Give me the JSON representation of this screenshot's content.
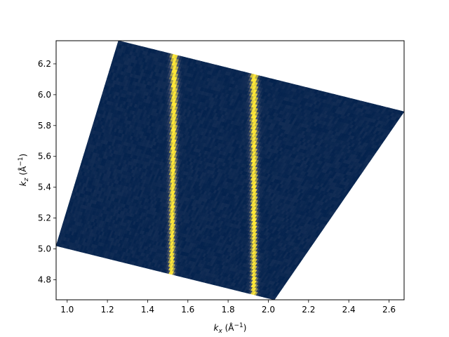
{
  "chart_data": {
    "type": "heatmap",
    "title": "",
    "xlabel": {
      "base": "k",
      "sub": "x",
      "unit": " (Å",
      "sup": "−1",
      "close": ")"
    },
    "ylabel": {
      "base": "k",
      "sub": "z",
      "unit": " (Å",
      "sup": "−1",
      "close": ")"
    },
    "xlim": [
      0.945,
      2.675
    ],
    "ylim": [
      4.67,
      6.35
    ],
    "x_ticks": [
      1.0,
      1.2,
      1.4,
      1.6,
      1.8,
      2.0,
      2.2,
      2.4,
      2.6
    ],
    "x_tick_labels": [
      "1.0",
      "1.2",
      "1.4",
      "1.6",
      "1.8",
      "2.0",
      "2.2",
      "2.4",
      "2.6"
    ],
    "y_ticks": [
      4.8,
      5.0,
      5.2,
      5.4,
      5.6,
      5.8,
      6.0,
      6.2
    ],
    "y_tick_labels": [
      "4.8",
      "5.0",
      "5.2",
      "5.4",
      "5.6",
      "5.8",
      "6.0",
      "6.2"
    ],
    "colormap": "cividis",
    "colors": {
      "low": "#00204c",
      "mid": "#414d6b",
      "high": "#fee838"
    },
    "region_corners": {
      "bottom_left": [
        0.945,
        5.02
      ],
      "bottom_right": [
        2.03,
        4.67
      ],
      "top_right": [
        2.675,
        5.89
      ],
      "top_left": [
        1.255,
        6.35
      ]
    },
    "bright_bands": [
      {
        "kx_bottom": 1.52,
        "kx_top": 1.535,
        "peak_intensity": 1.0
      },
      {
        "kx_bottom": 1.93,
        "kx_top": 1.93,
        "peak_intensity": 1.0
      }
    ],
    "grid": false
  }
}
